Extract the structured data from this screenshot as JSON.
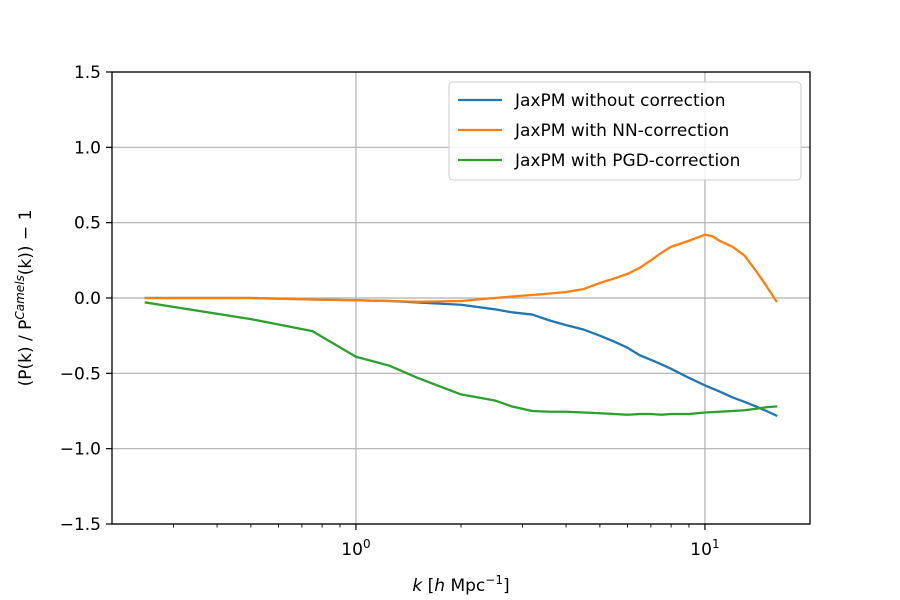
{
  "chart_data": {
    "type": "line",
    "title": "",
    "xscale": "log",
    "xlim": [
      0.2,
      20
    ],
    "ylim": [
      -1.5,
      1.5
    ],
    "grid": true,
    "xlabel": {
      "main": "k [h Mpc",
      "sup": "−1",
      "close": "]"
    },
    "ylabel": {
      "pre": "(P(k) / P",
      "sup": "Camels",
      "post": "(k)) − 1"
    },
    "x_major_ticks": [
      {
        "value": 1,
        "base": "10",
        "exp": "0"
      },
      {
        "value": 10,
        "base": "10",
        "exp": "1"
      }
    ],
    "y_ticks": [
      {
        "value": 1.5,
        "label": "1.5"
      },
      {
        "value": 1.0,
        "label": "1.0"
      },
      {
        "value": 0.5,
        "label": "0.5"
      },
      {
        "value": 0.0,
        "label": "0.0"
      },
      {
        "value": -0.5,
        "label": "−0.5"
      },
      {
        "value": -1.0,
        "label": "−1.0"
      },
      {
        "value": -1.5,
        "label": "−1.5"
      }
    ],
    "legend_position": "top-right",
    "series": [
      {
        "name": "JaxPM without correction",
        "color": "#1f77b4",
        "x": [
          0.25,
          0.5,
          0.75,
          1.0,
          1.25,
          1.5,
          2.0,
          2.5,
          2.8,
          3.2,
          3.6,
          4.0,
          4.5,
          5.0,
          5.5,
          6.0,
          6.5,
          7.0,
          7.5,
          8.0,
          9.0,
          10.0,
          11.0,
          12.0,
          13.0,
          14.0,
          15.0,
          16.0
        ],
        "values": [
          0.0,
          0.0,
          -0.01,
          -0.015,
          -0.02,
          -0.03,
          -0.045,
          -0.075,
          -0.095,
          -0.11,
          -0.15,
          -0.18,
          -0.21,
          -0.25,
          -0.29,
          -0.33,
          -0.38,
          -0.41,
          -0.44,
          -0.47,
          -0.53,
          -0.58,
          -0.62,
          -0.66,
          -0.69,
          -0.72,
          -0.75,
          -0.78
        ]
      },
      {
        "name": "JaxPM with NN-correction",
        "color": "#ff7f0e",
        "x": [
          0.25,
          0.5,
          0.75,
          1.0,
          1.25,
          1.5,
          2.0,
          2.5,
          2.8,
          3.2,
          3.6,
          4.0,
          4.5,
          5.0,
          5.5,
          6.0,
          6.5,
          7.0,
          7.5,
          8.0,
          8.5,
          9.0,
          9.5,
          10.0,
          10.5,
          11.0,
          12.0,
          13.0,
          14.0,
          15.0,
          16.0
        ],
        "values": [
          0.0,
          0.0,
          -0.01,
          -0.015,
          -0.02,
          -0.025,
          -0.02,
          0.0,
          0.01,
          0.02,
          0.03,
          0.04,
          0.06,
          0.1,
          0.13,
          0.16,
          0.2,
          0.25,
          0.3,
          0.34,
          0.36,
          0.38,
          0.4,
          0.42,
          0.41,
          0.38,
          0.34,
          0.28,
          0.18,
          0.08,
          -0.02
        ]
      },
      {
        "name": "JaxPM with PGD-correction",
        "color": "#2ca02c",
        "x": [
          0.25,
          0.5,
          0.75,
          1.0,
          1.25,
          1.5,
          2.0,
          2.5,
          2.8,
          3.2,
          3.6,
          4.0,
          4.5,
          5.0,
          5.5,
          6.0,
          6.5,
          7.0,
          7.5,
          8.0,
          9.0,
          10.0,
          11.0,
          12.0,
          13.0,
          14.0,
          15.0,
          16.0
        ],
        "values": [
          -0.03,
          -0.14,
          -0.22,
          -0.39,
          -0.45,
          -0.53,
          -0.64,
          -0.68,
          -0.72,
          -0.75,
          -0.755,
          -0.755,
          -0.76,
          -0.765,
          -0.77,
          -0.775,
          -0.77,
          -0.77,
          -0.775,
          -0.77,
          -0.77,
          -0.76,
          -0.755,
          -0.75,
          -0.745,
          -0.735,
          -0.725,
          -0.72
        ]
      }
    ]
  }
}
